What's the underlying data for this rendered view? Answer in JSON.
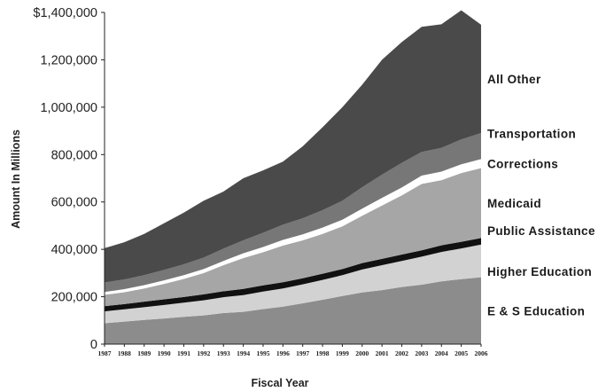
{
  "chart_data": {
    "type": "area",
    "stacked": true,
    "title": "",
    "xlabel": "Fiscal Year",
    "ylabel": "Amount In Millions",
    "ylim": [
      0,
      1400000
    ],
    "y_ticks": [
      0,
      200000,
      400000,
      600000,
      800000,
      1000000,
      1200000,
      1400000
    ],
    "y_tick_labels": [
      "0",
      "200,000",
      "400,000",
      "600,000",
      "800,000",
      "1,000,000",
      "1,200,000",
      "$1,400,000"
    ],
    "x": [
      "1987",
      "1988",
      "1989",
      "1990",
      "1991",
      "1992",
      "1993",
      "1994",
      "1995",
      "1996",
      "1997",
      "1998",
      "1999",
      "2000",
      "2001",
      "2002",
      "2003",
      "2004",
      "2005",
      "2006"
    ],
    "legend": "direct labels at right",
    "series": [
      {
        "name": "E & S Education",
        "color": "#8c8c8c",
        "values": [
          88000,
          95000,
          102000,
          108000,
          115000,
          121000,
          131000,
          136000,
          148000,
          158000,
          172000,
          187000,
          203000,
          218000,
          228000,
          241000,
          251000,
          265000,
          274000,
          282000
        ]
      },
      {
        "name": "Higher Education",
        "color": "#d2d2d2",
        "values": [
          50000,
          52000,
          54000,
          57000,
          60000,
          64000,
          67000,
          71000,
          74000,
          77000,
          80000,
          84000,
          88000,
          97000,
          105000,
          110000,
          118000,
          124000,
          130000,
          138000
        ]
      },
      {
        "name": "Public Assistance",
        "color": "#111111",
        "values": [
          22000,
          22000,
          23000,
          24000,
          24000,
          25000,
          25000,
          26000,
          26000,
          26000,
          26000,
          26000,
          26000,
          27000,
          27000,
          27000,
          27000,
          28000,
          28000,
          28000
        ]
      },
      {
        "name": "Medicaid",
        "color": "#a6a6a6",
        "values": [
          48000,
          50000,
          56000,
          65000,
          76000,
          90000,
          110000,
          130000,
          140000,
          155000,
          160000,
          168000,
          180000,
          200000,
          225000,
          250000,
          280000,
          275000,
          290000,
          295000
        ]
      },
      {
        "name": "Corrections",
        "color": "#ffffff",
        "values": [
          12000,
          13000,
          14000,
          15000,
          16000,
          17000,
          18000,
          20000,
          22000,
          24000,
          25000,
          27000,
          28000,
          30000,
          32000,
          33000,
          35000,
          36000,
          37000,
          38000
        ]
      },
      {
        "name": "Transportation",
        "color": "#777777",
        "values": [
          40000,
          41000,
          42000,
          44000,
          46000,
          48000,
          52000,
          55000,
          60000,
          64000,
          68000,
          73000,
          80000,
          90000,
          98000,
          104000,
          100000,
          100000,
          105000,
          110000
        ]
      },
      {
        "name": "All Other",
        "color": "#4a4a4a",
        "values": [
          145000,
          157000,
          174000,
          197000,
          218000,
          240000,
          241000,
          262000,
          263000,
          266000,
          304000,
          350000,
          395000,
          433000,
          485000,
          510000,
          528000,
          522000,
          545000,
          457000
        ]
      }
    ]
  }
}
